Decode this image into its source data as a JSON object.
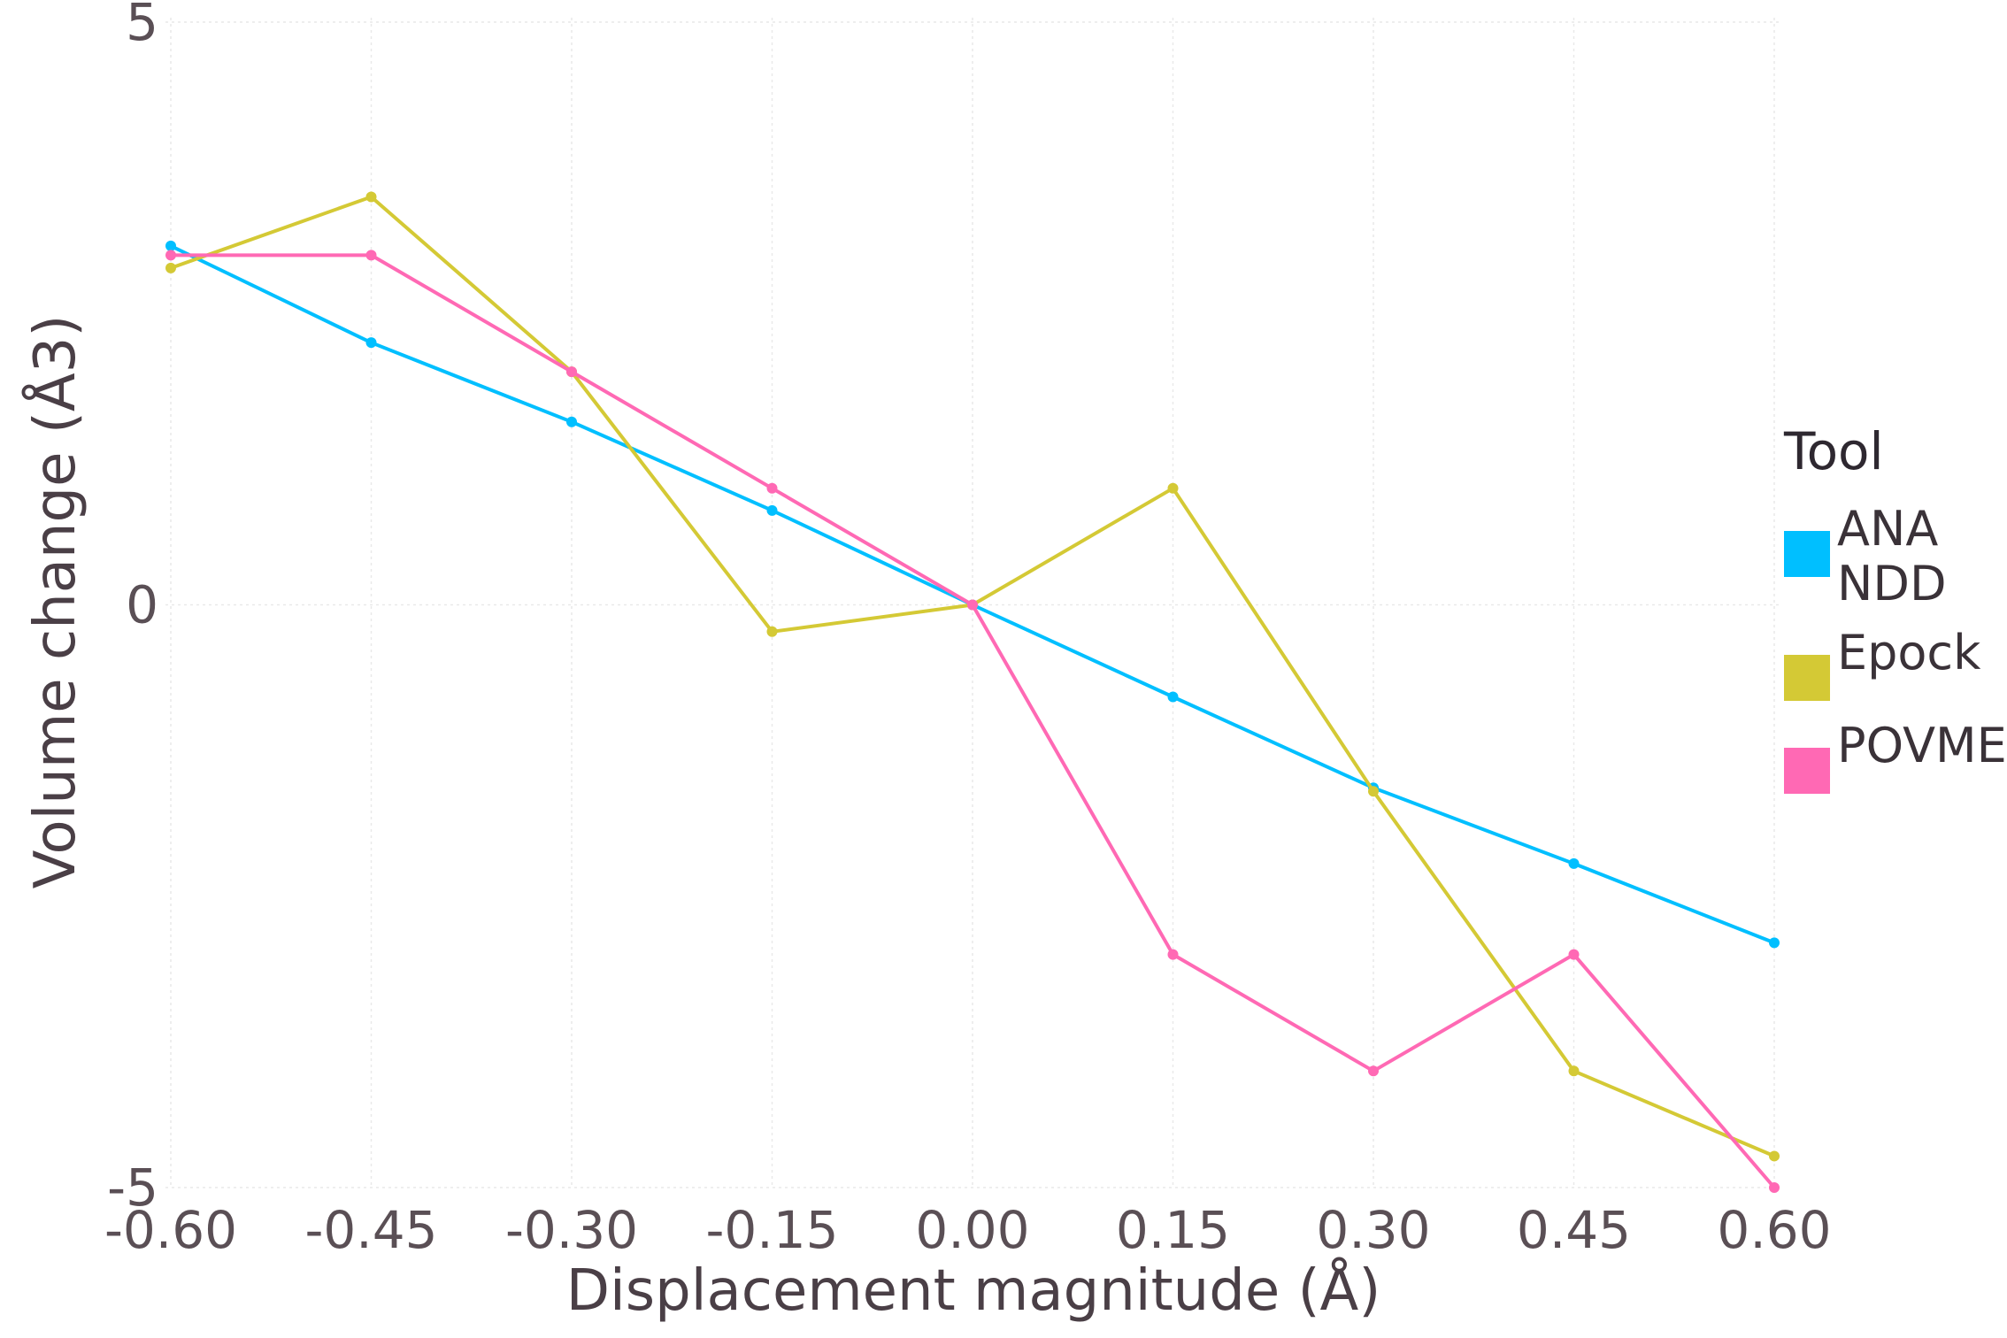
{
  "chart_data": {
    "type": "line",
    "xlabel": "Displacement magnitude (Å)",
    "ylabel": "Volume change (Å3)",
    "x": [
      -0.6,
      -0.45,
      -0.3,
      -0.15,
      0.0,
      0.15,
      0.3,
      0.45,
      0.6
    ],
    "x_tick_labels": [
      "-0.60",
      "-0.45",
      "-0.30",
      "-0.15",
      "0.00",
      "0.15",
      "0.30",
      "0.45",
      "0.60"
    ],
    "y_tick_values": [
      5,
      0,
      -5
    ],
    "y_tick_labels": [
      "5",
      "0",
      "-5"
    ],
    "xlim": [
      -0.6,
      0.6
    ],
    "ylim": [
      -5,
      5
    ],
    "grid": true,
    "legend_title": "Tool",
    "legend_position": "right",
    "series": [
      {
        "name": "ANA NDD",
        "name_lines": [
          "ANA",
          "NDD"
        ],
        "color": "#00bfff",
        "values": [
          3.08,
          2.25,
          1.57,
          0.81,
          0.0,
          -0.79,
          -1.57,
          -2.22,
          -2.9
        ]
      },
      {
        "name": "Epock",
        "name_lines": [
          "Epock"
        ],
        "color": "#d4c935",
        "values": [
          2.89,
          3.5,
          2.0,
          -0.23,
          0.0,
          1.0,
          -1.6,
          -4.0,
          -4.73
        ]
      },
      {
        "name": "POVME",
        "name_lines": [
          "POVME"
        ],
        "color": "#ff69b4",
        "values": [
          3.0,
          3.0,
          2.0,
          1.0,
          0.0,
          -3.0,
          -4.0,
          -3.0,
          -5.0
        ]
      }
    ]
  }
}
